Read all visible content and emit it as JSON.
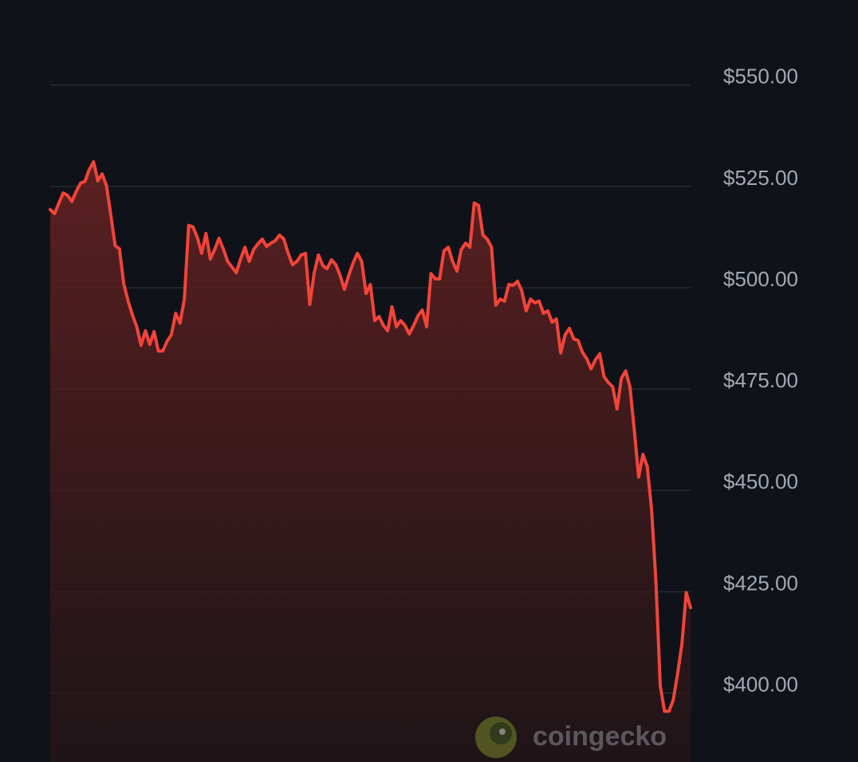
{
  "chart_data": {
    "type": "area-line",
    "values": [
      519.3,
      518.3,
      520.9,
      523.4,
      522.8,
      521.3,
      523.8,
      525.8,
      526.2,
      529.1,
      531.1,
      526.4,
      528.1,
      525.2,
      517.9,
      510.4,
      509.6,
      501.0,
      496.7,
      493.3,
      490.4,
      485.8,
      489.4,
      486.0,
      489.2,
      484.4,
      484.4,
      486.8,
      488.4,
      493.7,
      491.3,
      497.2,
      515.4,
      515.0,
      512.4,
      508.5,
      513.4,
      507.1,
      509.4,
      512.2,
      509.6,
      506.5,
      505.1,
      503.7,
      507.1,
      510.0,
      506.5,
      509.4,
      510.8,
      512.0,
      510.2,
      511.0,
      511.6,
      513.0,
      512.0,
      508.5,
      505.7,
      506.5,
      508.1,
      508.5,
      495.9,
      503.7,
      508.1,
      505.5,
      504.7,
      506.9,
      505.7,
      503.1,
      499.6,
      503.1,
      506.1,
      508.5,
      506.5,
      498.6,
      500.8,
      491.9,
      492.9,
      490.7,
      489.4,
      495.3,
      490.4,
      491.9,
      490.7,
      488.6,
      490.7,
      493.1,
      494.5,
      490.4,
      503.5,
      502.2,
      502.2,
      509.1,
      510.0,
      506.5,
      504.1,
      509.4,
      511.0,
      510.0,
      520.9,
      520.3,
      513.0,
      512.0,
      510.0,
      495.7,
      497.2,
      496.7,
      500.8,
      500.6,
      501.6,
      499.2,
      494.3,
      497.2,
      496.3,
      496.7,
      493.7,
      494.3,
      491.5,
      492.3,
      483.9,
      488.4,
      490.0,
      487.4,
      487.0,
      484.1,
      482.5,
      480.0,
      482.2,
      483.7,
      478.1,
      476.6,
      475.6,
      470.1,
      477.6,
      479.5,
      475.6,
      464.8,
      453.3,
      458.9,
      455.9,
      445.1,
      427.4,
      401.8,
      395.5,
      395.5,
      398.3,
      404.7,
      412.0,
      424.8,
      421.1
    ],
    "color": "#f2443a",
    "ylim": [
      383,
      571
    ],
    "yticks": [
      {
        "value": 550,
        "label": "$550.00"
      },
      {
        "value": 525,
        "label": "$525.00"
      },
      {
        "value": 500,
        "label": "$500.00"
      },
      {
        "value": 475,
        "label": "$475.00"
      },
      {
        "value": 450,
        "label": "$450.00"
      },
      {
        "value": 425,
        "label": "$425.00"
      },
      {
        "value": 400,
        "label": "$400.00"
      }
    ],
    "grid": true,
    "watermark": "coingecko"
  }
}
